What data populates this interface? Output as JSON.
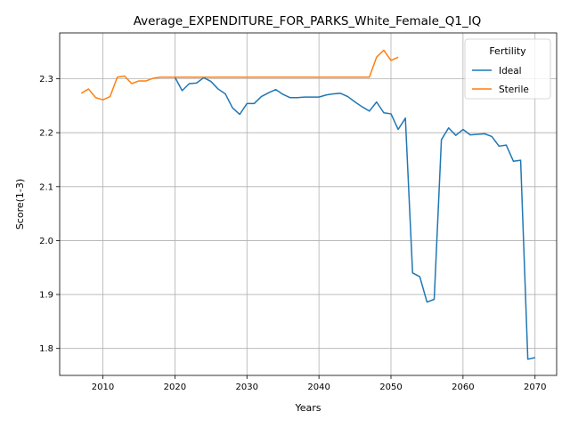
{
  "chart_data": {
    "type": "line",
    "title": "Average_EXPENDITURE_FOR_PARKS_White_Female_Q1_IQ",
    "xlabel": "Years",
    "ylabel": "Score(1-3)",
    "xlim": [
      2004,
      2073
    ],
    "ylim": [
      1.75,
      2.385
    ],
    "xticks": [
      2010,
      2020,
      2030,
      2040,
      2050,
      2060,
      2070
    ],
    "yticks": [
      1.8,
      1.9,
      2.0,
      2.1,
      2.2,
      2.3
    ],
    "ytick_labels": [
      "1.8",
      "1.9",
      "2.0",
      "2.1",
      "2.2",
      "2.3"
    ],
    "grid": true,
    "legend": {
      "title": "Fertility",
      "placement": "top-right"
    },
    "series": [
      {
        "name": "Ideal",
        "color": "#1f77b4",
        "x": [
          2020,
          2021,
          2022,
          2023,
          2024,
          2025,
          2026,
          2027,
          2028,
          2029,
          2030,
          2031,
          2032,
          2033,
          2034,
          2035,
          2036,
          2037,
          2038,
          2039,
          2040,
          2041,
          2042,
          2043,
          2044,
          2045,
          2046,
          2047,
          2048,
          2049,
          2050,
          2051,
          2052,
          2053,
          2054,
          2055,
          2056,
          2057,
          2058,
          2059,
          2060,
          2061,
          2062,
          2063,
          2064,
          2065,
          2066,
          2067,
          2068,
          2069,
          2070
        ],
        "values": [
          2.303,
          2.278,
          2.291,
          2.292,
          2.302,
          2.295,
          2.281,
          2.272,
          2.246,
          2.234,
          2.254,
          2.254,
          2.267,
          2.274,
          2.28,
          2.271,
          2.265,
          2.265,
          2.266,
          2.266,
          2.266,
          2.27,
          2.272,
          2.273,
          2.267,
          2.257,
          2.248,
          2.24,
          2.257,
          2.237,
          2.235,
          2.206,
          2.227,
          1.94,
          1.933,
          1.886,
          1.891,
          2.187,
          2.209,
          2.195,
          2.206,
          2.196,
          2.197,
          2.198,
          2.193,
          2.175,
          2.177,
          2.147,
          2.149,
          1.78,
          1.783
        ]
      },
      {
        "name": "Sterile",
        "color": "#ff7f0e",
        "x": [
          2007,
          2008,
          2009,
          2010,
          2011,
          2012,
          2013,
          2014,
          2015,
          2016,
          2017,
          2018,
          2019,
          2020,
          2021,
          2022,
          2023,
          2024,
          2025,
          2026,
          2027,
          2028,
          2029,
          2030,
          2031,
          2032,
          2033,
          2034,
          2035,
          2036,
          2037,
          2038,
          2039,
          2040,
          2041,
          2042,
          2043,
          2044,
          2045,
          2046,
          2047,
          2048,
          2049,
          2050,
          2051
        ],
        "values": [
          2.273,
          2.281,
          2.265,
          2.261,
          2.267,
          2.303,
          2.305,
          2.291,
          2.296,
          2.296,
          2.301,
          2.303,
          2.303,
          2.303,
          2.303,
          2.303,
          2.303,
          2.303,
          2.303,
          2.303,
          2.303,
          2.303,
          2.303,
          2.303,
          2.303,
          2.303,
          2.303,
          2.303,
          2.303,
          2.303,
          2.303,
          2.303,
          2.303,
          2.303,
          2.303,
          2.303,
          2.303,
          2.303,
          2.303,
          2.303,
          2.303,
          2.34,
          2.353,
          2.334,
          2.34
        ]
      }
    ]
  }
}
